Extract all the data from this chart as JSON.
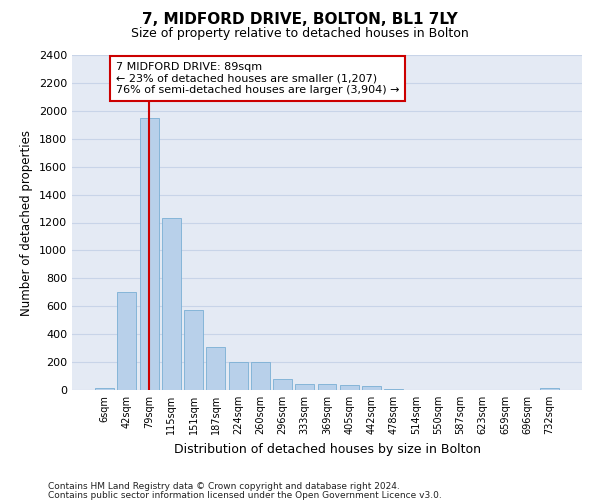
{
  "title1": "7, MIDFORD DRIVE, BOLTON, BL1 7LY",
  "title2": "Size of property relative to detached houses in Bolton",
  "xlabel": "Distribution of detached houses by size in Bolton",
  "ylabel": "Number of detached properties",
  "categories": [
    "6sqm",
    "42sqm",
    "79sqm",
    "115sqm",
    "151sqm",
    "187sqm",
    "224sqm",
    "260sqm",
    "296sqm",
    "333sqm",
    "369sqm",
    "405sqm",
    "442sqm",
    "478sqm",
    "514sqm",
    "550sqm",
    "587sqm",
    "623sqm",
    "659sqm",
    "696sqm",
    "732sqm"
  ],
  "values": [
    15,
    700,
    1950,
    1230,
    575,
    305,
    200,
    200,
    80,
    45,
    40,
    35,
    30,
    5,
    0,
    0,
    0,
    0,
    0,
    0,
    15
  ],
  "bar_color": "#b8d0ea",
  "bar_edge_color": "#7aafd4",
  "vline_x_index": 2,
  "vline_color": "#cc0000",
  "annotation_text": "7 MIDFORD DRIVE: 89sqm\n← 23% of detached houses are smaller (1,207)\n76% of semi-detached houses are larger (3,904) →",
  "annotation_box_color": "#ffffff",
  "annotation_box_edge": "#cc0000",
  "ylim": [
    0,
    2400
  ],
  "yticks": [
    0,
    200,
    400,
    600,
    800,
    1000,
    1200,
    1400,
    1600,
    1800,
    2000,
    2200,
    2400
  ],
  "grid_color": "#c8d4e8",
  "background_color": "#e4eaf4",
  "footer1": "Contains HM Land Registry data © Crown copyright and database right 2024.",
  "footer2": "Contains public sector information licensed under the Open Government Licence v3.0."
}
